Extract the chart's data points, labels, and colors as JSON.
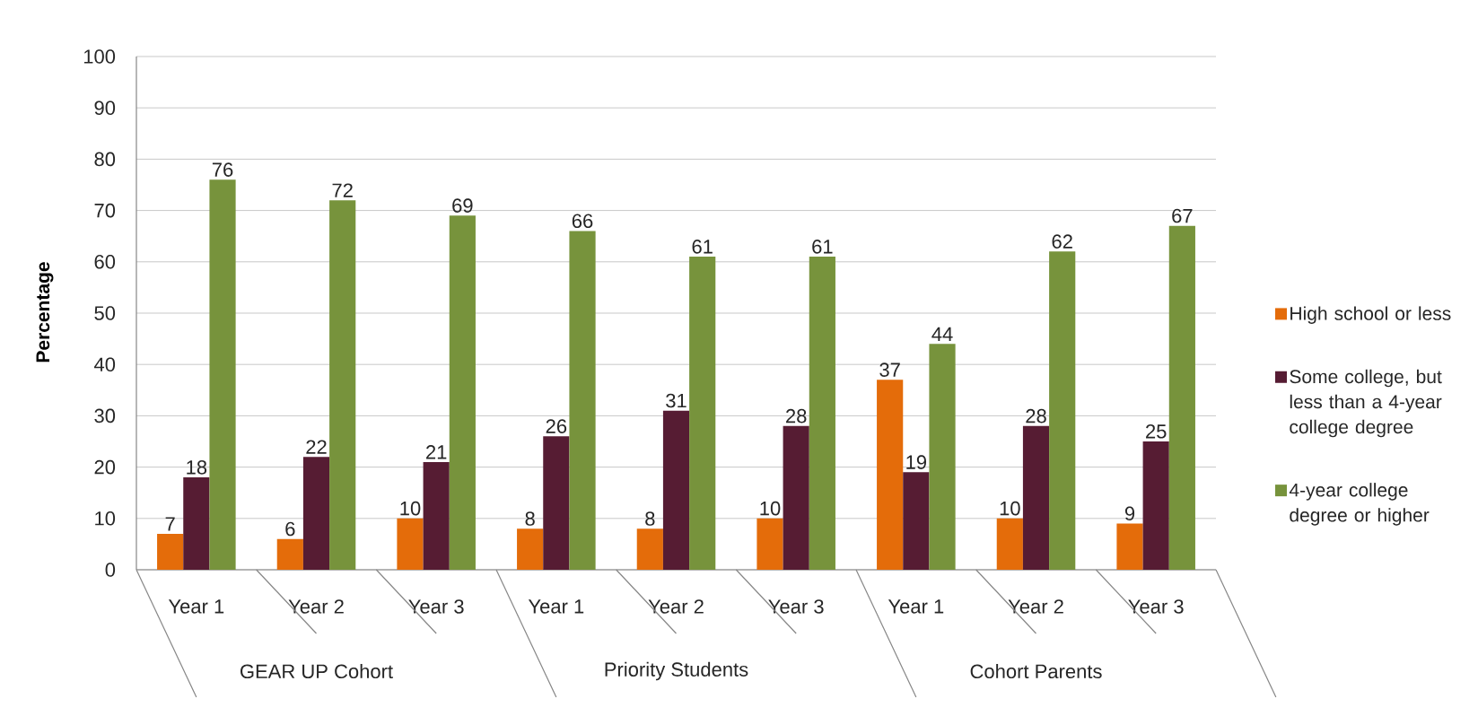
{
  "chart_data": {
    "type": "bar",
    "ylabel": "Percentage",
    "categories": [
      "Year 1",
      "Year 2",
      "Year 3",
      "Year 1",
      "Year 2",
      "Year 3",
      "Year 1",
      "Year 2",
      "Year 3"
    ],
    "annotations": [
      "GEAR UP Cohort",
      "Priority Students",
      "Cohort Parents"
    ],
    "series": [
      {
        "name": "High school or less",
        "color": "#e46c0a",
        "values": [
          7,
          6,
          10,
          8,
          8,
          10,
          37,
          10,
          9
        ]
      },
      {
        "name": "Some college, but less than a 4-year college degree",
        "color": "#561c33",
        "values": [
          18,
          22,
          21,
          26,
          31,
          28,
          19,
          28,
          25
        ]
      },
      {
        "name": "4-year college degree or higher",
        "color": "#77933c",
        "values": [
          76,
          72,
          69,
          66,
          61,
          61,
          44,
          62,
          67
        ]
      }
    ],
    "ylim": [
      0,
      100
    ],
    "yticks": [
      0,
      10,
      20,
      30,
      40,
      50,
      60,
      70,
      80,
      90,
      100
    ],
    "grid": "y",
    "legend": "right",
    "data_labels": true
  }
}
